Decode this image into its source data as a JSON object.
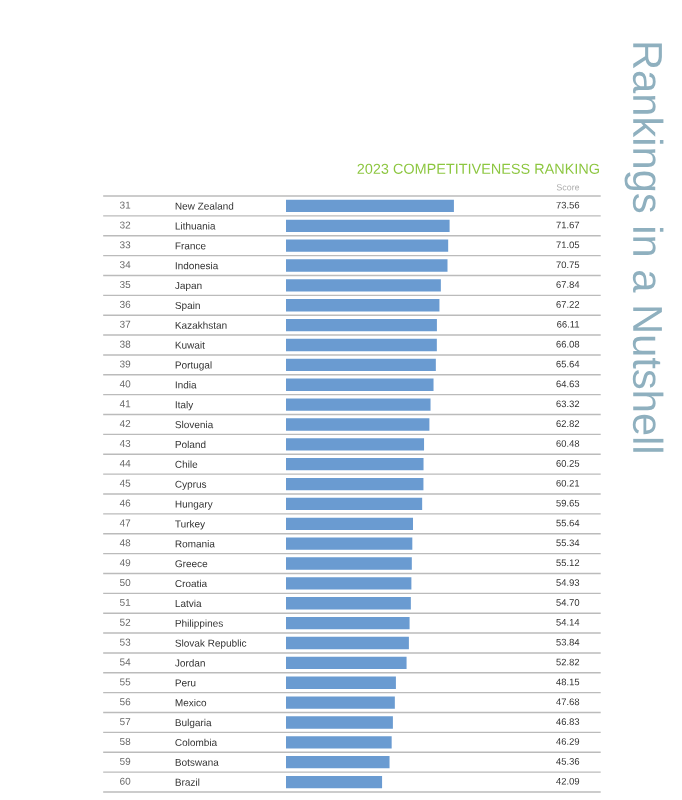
{
  "chart_data": {
    "type": "bar",
    "orientation": "horizontal",
    "title": "2023 COMPETITIVENESS RANKING",
    "categories": [
      "New Zealand",
      "Lithuania",
      "France",
      "Indonesia",
      "Japan",
      "Spain",
      "Kazakhstan",
      "Kuwait",
      "Portugal",
      "India",
      "Italy",
      "Slovenia",
      "Poland",
      "Chile",
      "Cyprus",
      "Hungary",
      "Turkey",
      "Romania",
      "Greece",
      "Croatia",
      "Latvia",
      "Philippines",
      "Slovak Republic",
      "Jordan",
      "Peru",
      "Mexico",
      "Bulgaria",
      "Colombia",
      "Botswana",
      "Brazil"
    ],
    "values": [
      73.56,
      71.67,
      71.05,
      70.75,
      67.84,
      67.22,
      66.11,
      66.08,
      65.64,
      64.63,
      63.32,
      62.82,
      60.48,
      60.25,
      60.21,
      59.65,
      55.64,
      55.34,
      55.12,
      54.93,
      54.7,
      54.14,
      53.84,
      52.82,
      48.15,
      47.68,
      46.83,
      46.29,
      45.36,
      42.09
    ],
    "value_labels": [
      "73.56",
      "71.67",
      "71.05",
      "70.75",
      "67.84",
      "67.22",
      "66.11",
      "66.08",
      "65.64",
      "64.63",
      "63.32",
      "62.82",
      "60.48",
      "60.25",
      "60.21",
      "59.65",
      "55.64",
      "55.34",
      "55.12",
      "54.93",
      "54.70",
      "54.14",
      "53.84",
      "52.82",
      "48.15",
      "47.68",
      "46.83",
      "46.29",
      "45.36",
      "42.09"
    ],
    "color": "#6a9bd1",
    "annotations": [
      "Score",
      "Rankings in a Nutshell",
      "31",
      "32",
      "33",
      "34",
      "35",
      "36",
      "37",
      "38",
      "39",
      "40",
      "41",
      "42",
      "43",
      "44",
      "45",
      "46",
      "47",
      "48",
      "49",
      "50",
      "51",
      "52",
      "53",
      "54",
      "55",
      "56",
      "57",
      "58",
      "59",
      "60"
    ]
  }
}
